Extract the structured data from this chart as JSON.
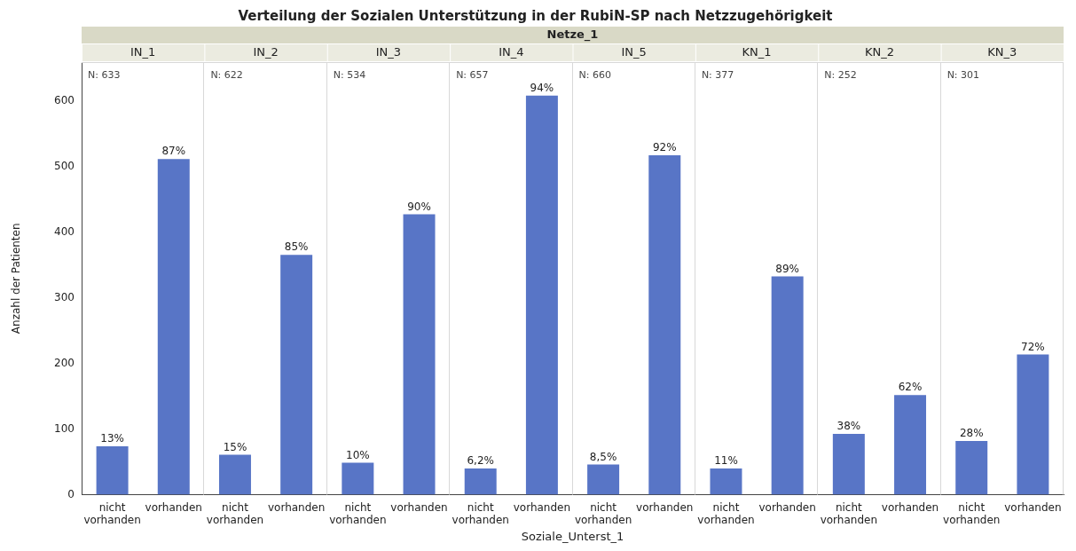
{
  "chart_data": {
    "type": "bar",
    "title": "Verteilung der Sozialen Unterstützung in der RubiN-SP nach Netzzugehörigkeit",
    "xlabel": "Soziale_Unterst_1",
    "ylabel": "Anzahl der Patienten",
    "categories": [
      "nicht vorhanden",
      "vorhanden",
      "nicht vorhanden",
      "vorhanden",
      "nicht vorhanden",
      "vorhanden",
      "nicht vorhanden",
      "vorhanden",
      "nicht vorhanden",
      "vorhanden",
      "nicht vorhanden",
      "vorhanden",
      "nicht vorhanden",
      "vorhanden",
      "nicht vorhanden",
      "vorhanden"
    ],
    "values": [
      74,
      512,
      61,
      366,
      49,
      428,
      40,
      609,
      46,
      518,
      40,
      333,
      93,
      152,
      82,
      214
    ],
    "color": "#5875c6",
    "ylim": [
      0,
      660
    ],
    "yticks": [
      0,
      100,
      200,
      300,
      400,
      500,
      600
    ],
    "annotations": [
      "Netze_1",
      "IN_1",
      "N: 633",
      "13%",
      "87%",
      "IN_2",
      "N: 622",
      "15%",
      "85%",
      "IN_3",
      "N: 534",
      "10%",
      "90%",
      "IN_4",
      "N: 657",
      "6,2%",
      "94%",
      "IN_5",
      "N: 660",
      "8,5%",
      "92%",
      "KN_1",
      "N: 377",
      "11%",
      "89%",
      "KN_2",
      "N: 252",
      "38%",
      "62%",
      "KN_3",
      "N: 301",
      "28%",
      "72%"
    ]
  }
}
